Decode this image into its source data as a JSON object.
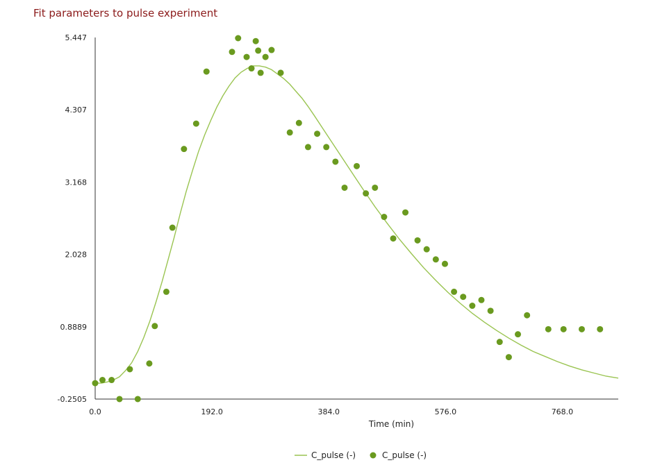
{
  "header": {
    "title": "Fit parameters to pulse experiment"
  },
  "chart_data": {
    "type": "line",
    "xlabel": "Time (min)",
    "ylabel": "",
    "xlim": [
      0,
      860
    ],
    "ylim": [
      -0.2505,
      5.447
    ],
    "x_ticks": [
      0,
      192,
      384,
      576,
      768
    ],
    "x_tick_labels": [
      "0.0",
      "192.0",
      "384.0",
      "576.0",
      "768.0"
    ],
    "y_ticks": [
      -0.2505,
      0.8889,
      2.028,
      3.168,
      4.307,
      5.447
    ],
    "y_tick_labels": [
      "-0.2505",
      "0.8889",
      "2.028",
      "3.168",
      "4.307",
      "5.447"
    ],
    "grid": false,
    "legend_position": "bottom-center",
    "colors": {
      "line": "#9ac451",
      "points": "#6a9a1f"
    },
    "series": [
      {
        "name": "C_pulse (-)",
        "kind": "line",
        "x": [
          0,
          10,
          20,
          30,
          40,
          50,
          60,
          70,
          80,
          90,
          100,
          110,
          120,
          130,
          140,
          150,
          160,
          170,
          180,
          190,
          200,
          210,
          220,
          230,
          240,
          250,
          260,
          270,
          280,
          290,
          300,
          310,
          320,
          330,
          340,
          350,
          360,
          380,
          400,
          420,
          440,
          460,
          480,
          500,
          520,
          540,
          560,
          580,
          600,
          620,
          640,
          660,
          680,
          700,
          720,
          740,
          760,
          780,
          800,
          820,
          840,
          860
        ],
        "y": [
          0.0,
          0.0,
          0.02,
          0.05,
          0.1,
          0.2,
          0.32,
          0.5,
          0.72,
          0.98,
          1.28,
          1.6,
          1.95,
          2.3,
          2.68,
          3.03,
          3.35,
          3.65,
          3.91,
          4.14,
          4.35,
          4.53,
          4.68,
          4.81,
          4.9,
          4.96,
          5.0,
          5.0,
          4.98,
          4.94,
          4.87,
          4.8,
          4.71,
          4.6,
          4.49,
          4.36,
          4.22,
          3.93,
          3.64,
          3.35,
          3.06,
          2.78,
          2.52,
          2.27,
          2.04,
          1.82,
          1.62,
          1.43,
          1.26,
          1.1,
          0.96,
          0.83,
          0.71,
          0.6,
          0.5,
          0.42,
          0.34,
          0.27,
          0.21,
          0.16,
          0.11,
          0.08
        ]
      },
      {
        "name": "C_pulse (-)",
        "kind": "scatter",
        "x": [
          0,
          12,
          27,
          40,
          57,
          70,
          89,
          98,
          117,
          127,
          146,
          166,
          183,
          225,
          235,
          249,
          257,
          264,
          268,
          272,
          280,
          290,
          305,
          320,
          335,
          350,
          365,
          380,
          395,
          410,
          430,
          445,
          460,
          475,
          490,
          510,
          530,
          545,
          560,
          575,
          590,
          605,
          620,
          635,
          650,
          665,
          680,
          695,
          710,
          745,
          770,
          800,
          830
        ],
        "y": [
          0.0,
          0.05,
          0.05,
          -0.25,
          0.22,
          -0.25,
          0.31,
          0.9,
          1.44,
          2.45,
          3.69,
          4.09,
          4.91,
          5.22,
          5.45,
          5.14,
          4.96,
          5.39,
          5.24,
          4.89,
          5.14,
          5.25,
          4.89,
          3.95,
          4.1,
          3.72,
          3.93,
          3.72,
          3.49,
          3.08,
          3.42,
          2.99,
          3.08,
          2.62,
          2.28,
          2.69,
          2.25,
          2.11,
          1.95,
          1.88,
          1.44,
          1.36,
          1.22,
          1.31,
          1.14,
          0.65,
          0.41,
          0.77,
          1.07,
          0.85,
          0.85,
          0.85,
          0.85
        ]
      }
    ]
  }
}
